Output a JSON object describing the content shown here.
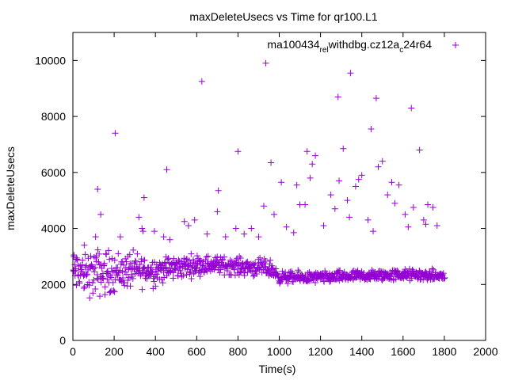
{
  "chart_data": {
    "type": "scatter",
    "title": "maxDeleteUsecs vs Time for qr100.L1",
    "xlabel": "Time(s)",
    "ylabel": "maxDeleteUsecs",
    "xlim": [
      0,
      2000
    ],
    "ylim": [
      0,
      11000
    ],
    "xticks": [
      0,
      200,
      400,
      600,
      800,
      1000,
      1200,
      1400,
      1600,
      1800,
      2000
    ],
    "yticks": [
      0,
      2000,
      4000,
      6000,
      8000,
      10000
    ],
    "grid": false,
    "legend_position": "top-right",
    "series_color": "#9400d3",
    "marker": "+",
    "legend": {
      "base": "ma100434",
      "sub1": "rel",
      "mid1": "withdbg.cz12a",
      "sub2": "c",
      "tail": "24r64"
    },
    "outliers": [
      {
        "x": 5,
        "y": 3050
      },
      {
        "x": 15,
        "y": 2900
      },
      {
        "x": 55,
        "y": 3400
      },
      {
        "x": 110,
        "y": 3700
      },
      {
        "x": 120,
        "y": 5400
      },
      {
        "x": 135,
        "y": 4500
      },
      {
        "x": 205,
        "y": 7400
      },
      {
        "x": 230,
        "y": 3700
      },
      {
        "x": 320,
        "y": 4400
      },
      {
        "x": 335,
        "y": 4000
      },
      {
        "x": 340,
        "y": 3900
      },
      {
        "x": 345,
        "y": 5100
      },
      {
        "x": 395,
        "y": 3900
      },
      {
        "x": 440,
        "y": 3700
      },
      {
        "x": 455,
        "y": 6100
      },
      {
        "x": 470,
        "y": 3600
      },
      {
        "x": 540,
        "y": 4250
      },
      {
        "x": 560,
        "y": 4100
      },
      {
        "x": 590,
        "y": 4300
      },
      {
        "x": 625,
        "y": 9250
      },
      {
        "x": 650,
        "y": 3800
      },
      {
        "x": 700,
        "y": 4600
      },
      {
        "x": 705,
        "y": 5350
      },
      {
        "x": 740,
        "y": 3700
      },
      {
        "x": 790,
        "y": 4000
      },
      {
        "x": 800,
        "y": 6750
      },
      {
        "x": 830,
        "y": 3800
      },
      {
        "x": 865,
        "y": 4000
      },
      {
        "x": 900,
        "y": 3700
      },
      {
        "x": 925,
        "y": 4800
      },
      {
        "x": 935,
        "y": 9900
      },
      {
        "x": 960,
        "y": 6350
      },
      {
        "x": 975,
        "y": 4500
      },
      {
        "x": 1010,
        "y": 5650
      },
      {
        "x": 1035,
        "y": 4050
      },
      {
        "x": 1070,
        "y": 3850
      },
      {
        "x": 1085,
        "y": 5550
      },
      {
        "x": 1100,
        "y": 4850
      },
      {
        "x": 1125,
        "y": 4850
      },
      {
        "x": 1135,
        "y": 6750
      },
      {
        "x": 1150,
        "y": 5800
      },
      {
        "x": 1160,
        "y": 6300
      },
      {
        "x": 1175,
        "y": 6600
      },
      {
        "x": 1215,
        "y": 4100
      },
      {
        "x": 1250,
        "y": 5200
      },
      {
        "x": 1270,
        "y": 4700
      },
      {
        "x": 1285,
        "y": 8700
      },
      {
        "x": 1290,
        "y": 5700
      },
      {
        "x": 1310,
        "y": 6850
      },
      {
        "x": 1330,
        "y": 5000
      },
      {
        "x": 1340,
        "y": 4400
      },
      {
        "x": 1345,
        "y": 9550
      },
      {
        "x": 1370,
        "y": 5500
      },
      {
        "x": 1385,
        "y": 5750
      },
      {
        "x": 1400,
        "y": 5900
      },
      {
        "x": 1430,
        "y": 4300
      },
      {
        "x": 1445,
        "y": 7550
      },
      {
        "x": 1455,
        "y": 3900
      },
      {
        "x": 1470,
        "y": 8650
      },
      {
        "x": 1480,
        "y": 6200
      },
      {
        "x": 1500,
        "y": 6400
      },
      {
        "x": 1525,
        "y": 5200
      },
      {
        "x": 1545,
        "y": 5650
      },
      {
        "x": 1560,
        "y": 4900
      },
      {
        "x": 1580,
        "y": 5550
      },
      {
        "x": 1610,
        "y": 4500
      },
      {
        "x": 1625,
        "y": 4050
      },
      {
        "x": 1640,
        "y": 8300
      },
      {
        "x": 1650,
        "y": 4750
      },
      {
        "x": 1680,
        "y": 6800
      },
      {
        "x": 1700,
        "y": 4300
      },
      {
        "x": 1710,
        "y": 4150
      },
      {
        "x": 1720,
        "y": 4850
      },
      {
        "x": 1745,
        "y": 4750
      },
      {
        "x": 1765,
        "y": 4100
      }
    ],
    "dense_band": {
      "x_range": [
        0,
        1800
      ],
      "x_step": 2,
      "profile_x": [
        0,
        100,
        200,
        300,
        400,
        500,
        600,
        700,
        800,
        900,
        960,
        1000,
        1200,
        1400,
        1600,
        1800
      ],
      "profile_center": [
        2450,
        2400,
        2450,
        2500,
        2500,
        2600,
        2700,
        2700,
        2650,
        2600,
        2550,
        2250,
        2250,
        2300,
        2350,
        2300
      ],
      "profile_spread": [
        700,
        850,
        700,
        600,
        500,
        400,
        350,
        300,
        300,
        300,
        300,
        200,
        200,
        200,
        200,
        180
      ],
      "low_floor": [
        1500,
        1500,
        1600,
        1700,
        1800,
        1900,
        2000,
        2000,
        2000,
        2000,
        2000,
        1900,
        1800,
        1800,
        1800,
        1800
      ]
    }
  }
}
